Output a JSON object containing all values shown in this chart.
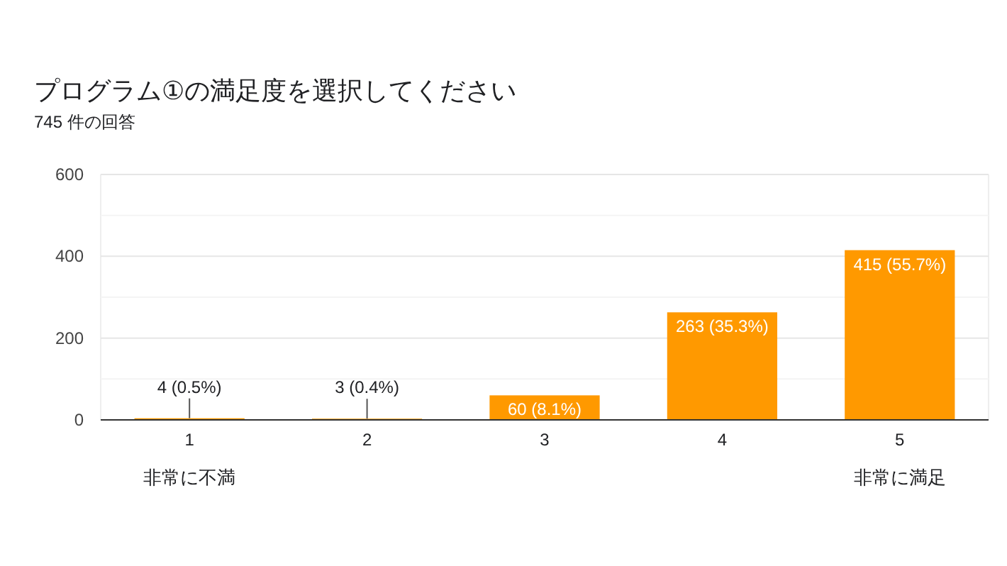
{
  "chart_data": {
    "type": "bar",
    "title": "プログラム①の満足度を選択してください",
    "subtitle": "745 件の回答",
    "categories": [
      "1",
      "2",
      "3",
      "4",
      "5"
    ],
    "values": [
      4,
      3,
      60,
      263,
      415
    ],
    "color": "#ff9900",
    "value_labels": [
      "4 (0.5%)",
      "3 (0.4%)",
      "60 (8.1%)",
      "263 (35.3%)",
      "415 (55.7%)"
    ],
    "ylim": [
      0,
      600
    ],
    "yticks": [
      0,
      {
        "value": 100,
        "label": null
      },
      200,
      {
        "value": 300,
        "label": null
      },
      400,
      {
        "value": 500,
        "label": null
      },
      600
    ],
    "grid": "y",
    "annotations": [
      "非常に不満",
      "非常に満足"
    ]
  }
}
